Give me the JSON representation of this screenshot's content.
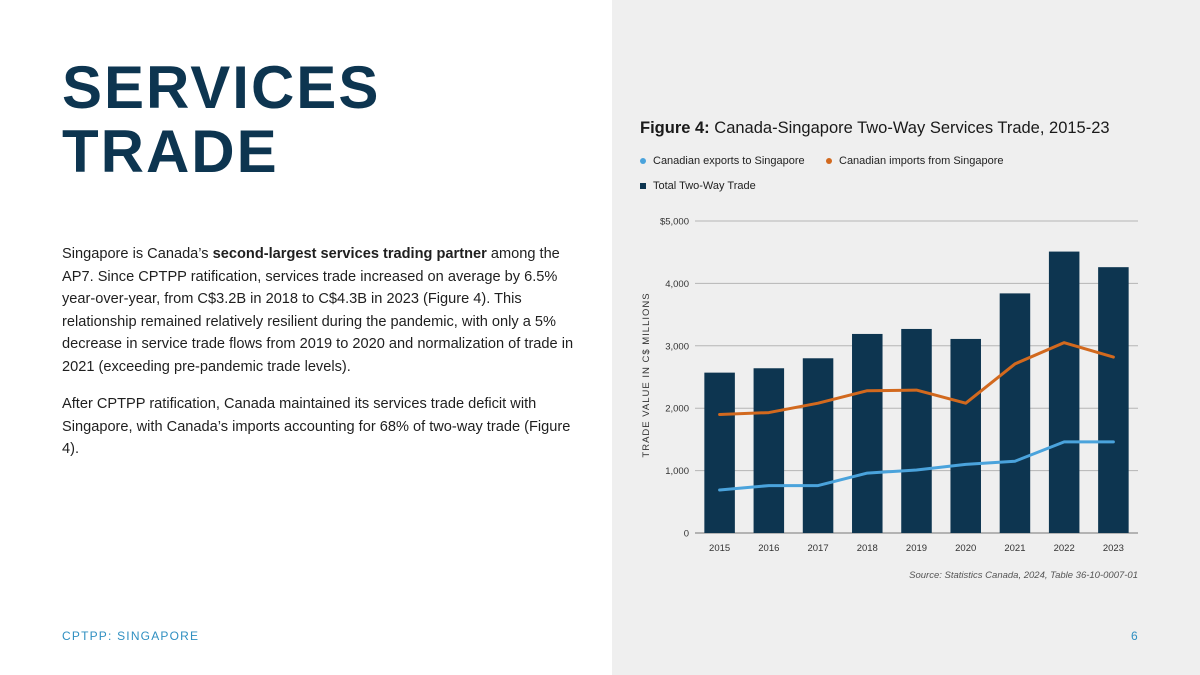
{
  "page": {
    "title_line1": "SERVICES",
    "title_line2": "TRADE",
    "paragraph1": {
      "pre": "Singapore is Canada’s ",
      "bold": "second-largest services trading partner",
      "post": " among the AP7. Since CPTPP ratification, services trade increased on average by 6.5% year-over-year, from C$3.2B in 2018 to C$4.3B in 2023 (Figure 4). This relationship remained relatively resilient during the pandemic, with only a 5% decrease in service trade flows from 2019 to 2020 and normalization of trade in 2021 (exceeding pre-pandemic trade levels)."
    },
    "paragraph2": "After CPTPP ratification, Canada maintained its services trade deficit with Singapore, with Canada’s imports accounting for 68% of two-way trade (Figure 4).",
    "footer": "CPTPP: SINGAPORE",
    "page_number": "6"
  },
  "figure": {
    "label": "Figure 4:",
    "title": "Canada-Singapore Two-Way Services Trade, 2015-23",
    "source": "Source: Statistics Canada, 2024, Table 36-10-0007-01"
  },
  "chart_data": {
    "type": "bar",
    "ylabel": "TRADE VALUE IN C$ MILLIONS",
    "xlabel": "",
    "ylim": [
      0,
      5000
    ],
    "y_ticks": [
      0,
      1000,
      2000,
      3000,
      4000,
      5000
    ],
    "y_tick_labels": [
      "0",
      "1,000",
      "2,000",
      "3,000",
      "4,000",
      "$5,000"
    ],
    "grid": true,
    "legend_position": "top-left",
    "categories": [
      "2015",
      "2016",
      "2017",
      "2018",
      "2019",
      "2020",
      "2021",
      "2022",
      "2023"
    ],
    "series": [
      {
        "name": "Canadian exports to Singapore",
        "type": "line",
        "color": "#4aa3dc",
        "values": [
          690,
          760,
          760,
          960,
          1010,
          1100,
          1150,
          1460,
          1460
        ]
      },
      {
        "name": "Canadian imports from Singapore",
        "type": "line",
        "color": "#d2691e",
        "values": [
          1900,
          1930,
          2080,
          2280,
          2290,
          2080,
          2710,
          3050,
          2820
        ]
      },
      {
        "name": "Total Two-Way Trade",
        "type": "bar",
        "color": "#0d3550",
        "values": [
          2570,
          2640,
          2800,
          3190,
          3270,
          3110,
          3840,
          4510,
          4260
        ]
      }
    ]
  }
}
